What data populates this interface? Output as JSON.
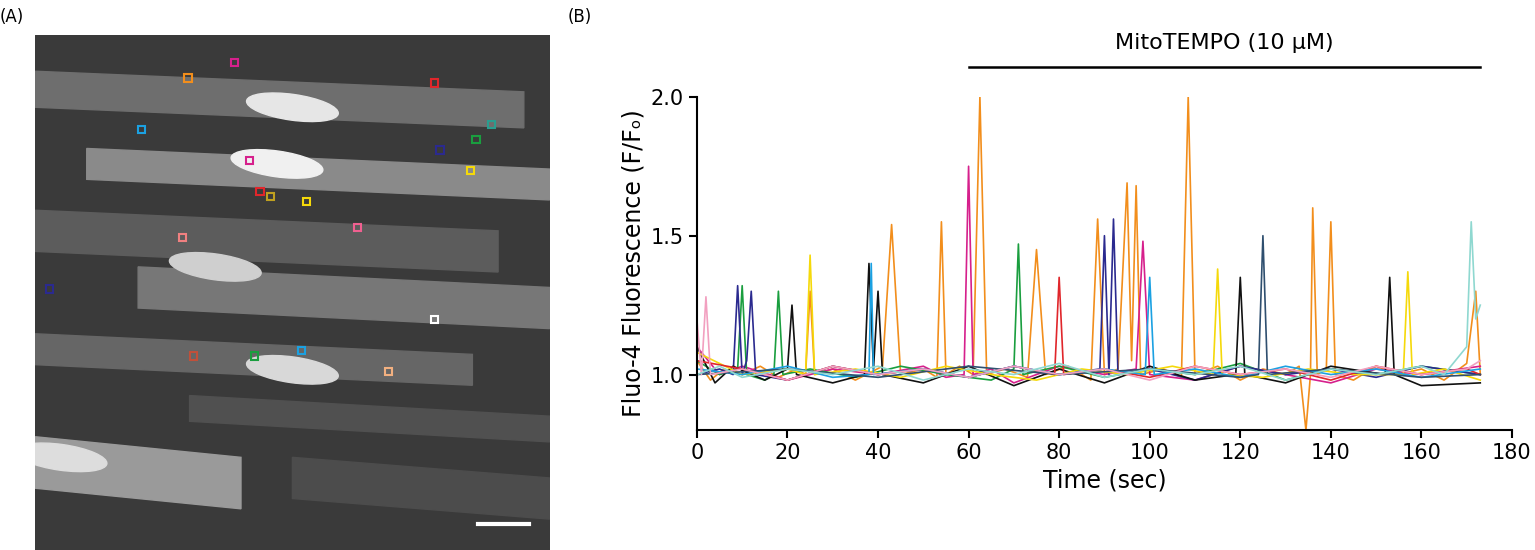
{
  "panel_labels": [
    "(A)",
    "(B)"
  ],
  "chart_data": {
    "type": "line",
    "x_label": "Time (sec)",
    "y_label": "Fluo-4 Fluorescence (F/Fₒ)",
    "xlim": [
      0,
      180
    ],
    "xticks": [
      0,
      20,
      40,
      60,
      80,
      100,
      120,
      140,
      160,
      180
    ],
    "ylim": [
      0.8,
      2.0
    ],
    "yticks": [
      {
        "value": 1.0,
        "label": "1.0"
      },
      {
        "value": 1.5,
        "label": "1.5"
      },
      {
        "value": 2.0,
        "label": "2.0"
      }
    ],
    "annotations": [
      {
        "text": "MitoTEMPO (10 μM)",
        "x_start": 60,
        "x_end": 173
      }
    ],
    "series": [
      {
        "color": "#f28e1c",
        "x": [
          0,
          3,
          6,
          10,
          14,
          18,
          22,
          24,
          25,
          26,
          30,
          35,
          41,
          43,
          45,
          50,
          53,
          54,
          55,
          58,
          61,
          62.5,
          64,
          68,
          73,
          75,
          77,
          82,
          87,
          88.5,
          90,
          93,
          95,
          96,
          97,
          98,
          103,
          107,
          108.5,
          110,
          115,
          120,
          125,
          130,
          133,
          134.5,
          135.5,
          136,
          137,
          139,
          140,
          141,
          145,
          150,
          155,
          160,
          165,
          170,
          172,
          173
        ],
        "values": [
          1.05,
          0.98,
          1.02,
          1.0,
          1.03,
          0.99,
          1.02,
          1.0,
          1.3,
          1.0,
          1.02,
          0.98,
          1.03,
          1.54,
          1.0,
          1.02,
          0.99,
          1.55,
          1.0,
          1.03,
          1.0,
          2.0,
          1.0,
          1.02,
          0.99,
          1.45,
          1.0,
          1.03,
          0.98,
          1.56,
          1.0,
          1.02,
          1.69,
          1.05,
          1.68,
          1.0,
          1.02,
          0.99,
          2.0,
          1.0,
          1.03,
          0.98,
          1.02,
          1.0,
          1.03,
          0.8,
          1.0,
          1.6,
          1.0,
          1.02,
          1.55,
          1.0,
          0.98,
          1.03,
          1.0,
          1.02,
          0.98,
          1.04,
          1.3,
          1.0
        ]
      },
      {
        "color": "#d6208c",
        "x": [
          0,
          5,
          10,
          20,
          30,
          40,
          50,
          55,
          59,
          60,
          61,
          65,
          70,
          80,
          90,
          97,
          98.5,
          100,
          110,
          120,
          130,
          140,
          150,
          160,
          173
        ],
        "values": [
          1.1,
          1.0,
          1.03,
          0.98,
          1.02,
          1.0,
          1.03,
          0.99,
          1.0,
          1.75,
          1.0,
          1.02,
          0.97,
          1.03,
          1.0,
          1.02,
          1.48,
          1.0,
          0.98,
          1.03,
          1.0,
          0.97,
          1.02,
          1.0,
          1.03
        ]
      },
      {
        "color": "#1a9e3f",
        "x": [
          0,
          5,
          9,
          10,
          11,
          15,
          17,
          18,
          19,
          25,
          35,
          45,
          55,
          65,
          70,
          71,
          72,
          80,
          90,
          100,
          110,
          120,
          130,
          140,
          150,
          160,
          173
        ],
        "values": [
          1.05,
          1.0,
          1.02,
          1.32,
          1.0,
          0.98,
          1.0,
          1.3,
          1.0,
          1.02,
          0.99,
          1.03,
          1.0,
          0.98,
          1.02,
          1.47,
          1.0,
          1.03,
          0.99,
          1.02,
          1.0,
          1.04,
          0.98,
          1.02,
          1.0,
          1.03,
          1.0
        ]
      },
      {
        "color": "#2b2a8f",
        "x": [
          0,
          5,
          8,
          9,
          10,
          11,
          12,
          13,
          20,
          30,
          40,
          50,
          60,
          70,
          80,
          89,
          90,
          91,
          92,
          93,
          100,
          110,
          120,
          130,
          140,
          150,
          160,
          173
        ],
        "values": [
          1.0,
          1.02,
          1.0,
          1.32,
          1.0,
          1.05,
          1.3,
          1.0,
          0.98,
          1.03,
          1.0,
          1.02,
          0.99,
          1.03,
          1.0,
          1.02,
          1.5,
          1.0,
          1.56,
          1.0,
          1.02,
          0.98,
          1.03,
          1.0,
          1.02,
          0.99,
          1.03,
          1.0
        ]
      },
      {
        "color": "#111111",
        "x": [
          0,
          4,
          8,
          15,
          20,
          21,
          22,
          30,
          37,
          38,
          39,
          40,
          41,
          50,
          60,
          70,
          80,
          90,
          100,
          110,
          119,
          120,
          121,
          130,
          140,
          152,
          153,
          154,
          160,
          173
        ],
        "values": [
          1.1,
          0.97,
          1.03,
          0.98,
          1.02,
          1.25,
          1.0,
          0.97,
          1.0,
          1.4,
          1.02,
          1.3,
          1.0,
          0.97,
          1.03,
          0.96,
          1.02,
          0.97,
          1.03,
          0.98,
          1.0,
          1.35,
          1.0,
          0.97,
          1.03,
          1.0,
          1.35,
          1.0,
          0.96,
          0.97
        ]
      },
      {
        "color": "#f5d90a",
        "x": [
          0,
          10,
          20,
          24,
          25,
          26,
          35,
          45,
          55,
          65,
          75,
          85,
          95,
          105,
          114,
          115,
          116,
          125,
          135,
          145,
          156,
          157,
          158,
          165,
          173
        ],
        "values": [
          1.08,
          1.0,
          1.02,
          1.0,
          1.43,
          1.0,
          1.02,
          0.99,
          1.03,
          1.0,
          0.98,
          1.02,
          1.0,
          1.03,
          1.0,
          1.38,
          1.0,
          0.99,
          1.02,
          1.0,
          1.0,
          1.37,
          1.0,
          1.02,
          0.98
        ]
      },
      {
        "color": "#e0262b",
        "x": [
          0,
          10,
          20,
          30,
          40,
          50,
          60,
          70,
          79,
          80,
          81,
          90,
          100,
          110,
          120,
          130,
          140,
          150,
          160,
          170,
          173
        ],
        "values": [
          1.05,
          1.02,
          0.98,
          1.03,
          1.0,
          1.02,
          0.99,
          1.03,
          1.0,
          1.35,
          1.0,
          1.02,
          0.99,
          1.03,
          1.0,
          1.02,
          0.98,
          1.03,
          1.0,
          1.02,
          1.0
        ]
      },
      {
        "color": "#1ba1e2",
        "x": [
          0,
          10,
          20,
          30,
          38,
          38.5,
          39,
          50,
          60,
          70,
          80,
          90,
          99,
          100,
          101,
          110,
          120,
          130,
          140,
          150,
          160,
          173
        ],
        "values": [
          1.02,
          1.0,
          1.03,
          0.99,
          1.0,
          1.4,
          1.0,
          1.02,
          0.99,
          1.03,
          1.0,
          1.02,
          1.0,
          1.35,
          1.0,
          1.02,
          0.99,
          1.03,
          1.0,
          1.02,
          0.99,
          1.02
        ]
      },
      {
        "color": "#2f4f6f",
        "x": [
          0,
          20,
          40,
          60,
          80,
          100,
          120,
          124,
          125,
          126,
          140,
          160,
          173
        ],
        "values": [
          1.0,
          1.02,
          0.99,
          1.03,
          1.0,
          1.02,
          0.99,
          1.0,
          1.5,
          1.0,
          1.02,
          0.99,
          1.0
        ]
      },
      {
        "color": "#f2a0c0",
        "x": [
          0,
          1,
          2,
          3,
          10,
          20,
          30,
          40,
          50,
          60,
          70,
          80,
          90,
          100,
          110,
          120,
          130,
          140,
          150,
          160,
          170,
          173
        ],
        "values": [
          1.2,
          1.0,
          1.28,
          1.0,
          1.02,
          0.98,
          1.03,
          1.0,
          1.02,
          0.99,
          1.03,
          1.0,
          1.02,
          0.98,
          1.03,
          1.0,
          1.02,
          0.99,
          1.03,
          1.0,
          1.02,
          1.05
        ]
      },
      {
        "color": "#8fd8d0",
        "x": [
          0,
          5,
          10,
          20,
          30,
          40,
          50,
          60,
          70,
          80,
          90,
          100,
          110,
          120,
          130,
          140,
          150,
          160,
          165,
          170,
          171,
          172,
          173
        ],
        "values": [
          1.0,
          1.03,
          0.99,
          1.02,
          1.0,
          1.03,
          0.98,
          1.02,
          1.0,
          1.04,
          0.99,
          1.02,
          1.0,
          1.03,
          0.98,
          1.02,
          1.0,
          1.03,
          1.0,
          1.1,
          1.55,
          1.2,
          1.25
        ]
      }
    ]
  }
}
